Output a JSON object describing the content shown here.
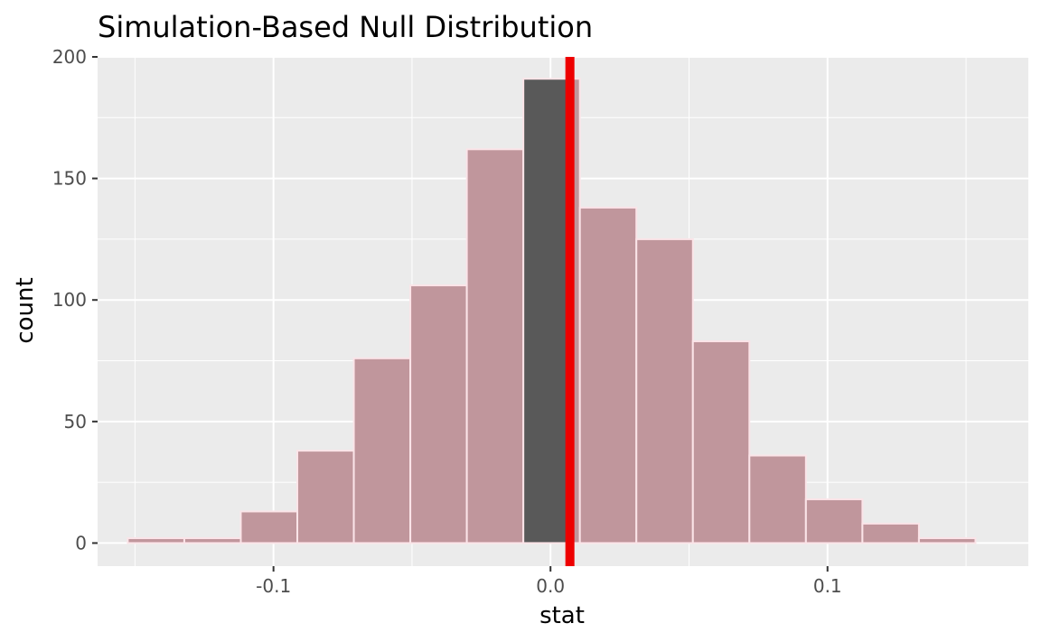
{
  "chart_data": {
    "type": "bar",
    "title": "Simulation-Based Null Distribution",
    "xlabel": "stat",
    "ylabel": "count",
    "xlim": [
      -0.1635,
      0.1725
    ],
    "ylim": [
      -9.5,
      200
    ],
    "x_ticks": [
      {
        "value": -0.1,
        "label": "-0.1"
      },
      {
        "value": 0.0,
        "label": "0.0"
      },
      {
        "value": 0.1,
        "label": "0.1"
      }
    ],
    "y_ticks": [
      {
        "value": 0,
        "label": "0"
      },
      {
        "value": 50,
        "label": "50"
      },
      {
        "value": 100,
        "label": "100"
      },
      {
        "value": 150,
        "label": "150"
      },
      {
        "value": 200,
        "label": "200"
      }
    ],
    "bin_width": 0.0204,
    "bins": [
      {
        "center": -0.1424,
        "count": 2,
        "shaded": true
      },
      {
        "center": -0.122,
        "count": 2,
        "shaded": true
      },
      {
        "center": -0.1016,
        "count": 13,
        "shaded": true
      },
      {
        "center": -0.0812,
        "count": 38,
        "shaded": true
      },
      {
        "center": -0.0608,
        "count": 76,
        "shaded": true
      },
      {
        "center": -0.0404,
        "count": 106,
        "shaded": true
      },
      {
        "center": -0.02,
        "count": 162,
        "shaded": true
      },
      {
        "center": 0.0004,
        "count": 191,
        "shaded": "partial"
      },
      {
        "center": 0.0208,
        "count": 138,
        "shaded": true
      },
      {
        "center": 0.0412,
        "count": 125,
        "shaded": true
      },
      {
        "center": 0.0616,
        "count": 83,
        "shaded": true
      },
      {
        "center": 0.082,
        "count": 36,
        "shaded": true
      },
      {
        "center": 0.1024,
        "count": 18,
        "shaded": true
      },
      {
        "center": 0.1228,
        "count": 8,
        "shaded": true
      },
      {
        "center": 0.1432,
        "count": 2,
        "shaded": true
      }
    ],
    "observed_stat": 0.007,
    "shade_direction": "two-sided",
    "colors": {
      "panel": "#ebebeb",
      "grid": "#ffffff",
      "bar_unshaded": "#595959",
      "bar_shaded": "#c0969c",
      "bar_outline": "#fbe4e8",
      "observed_line": "#ee0000"
    },
    "grid": true,
    "legend": "none"
  }
}
